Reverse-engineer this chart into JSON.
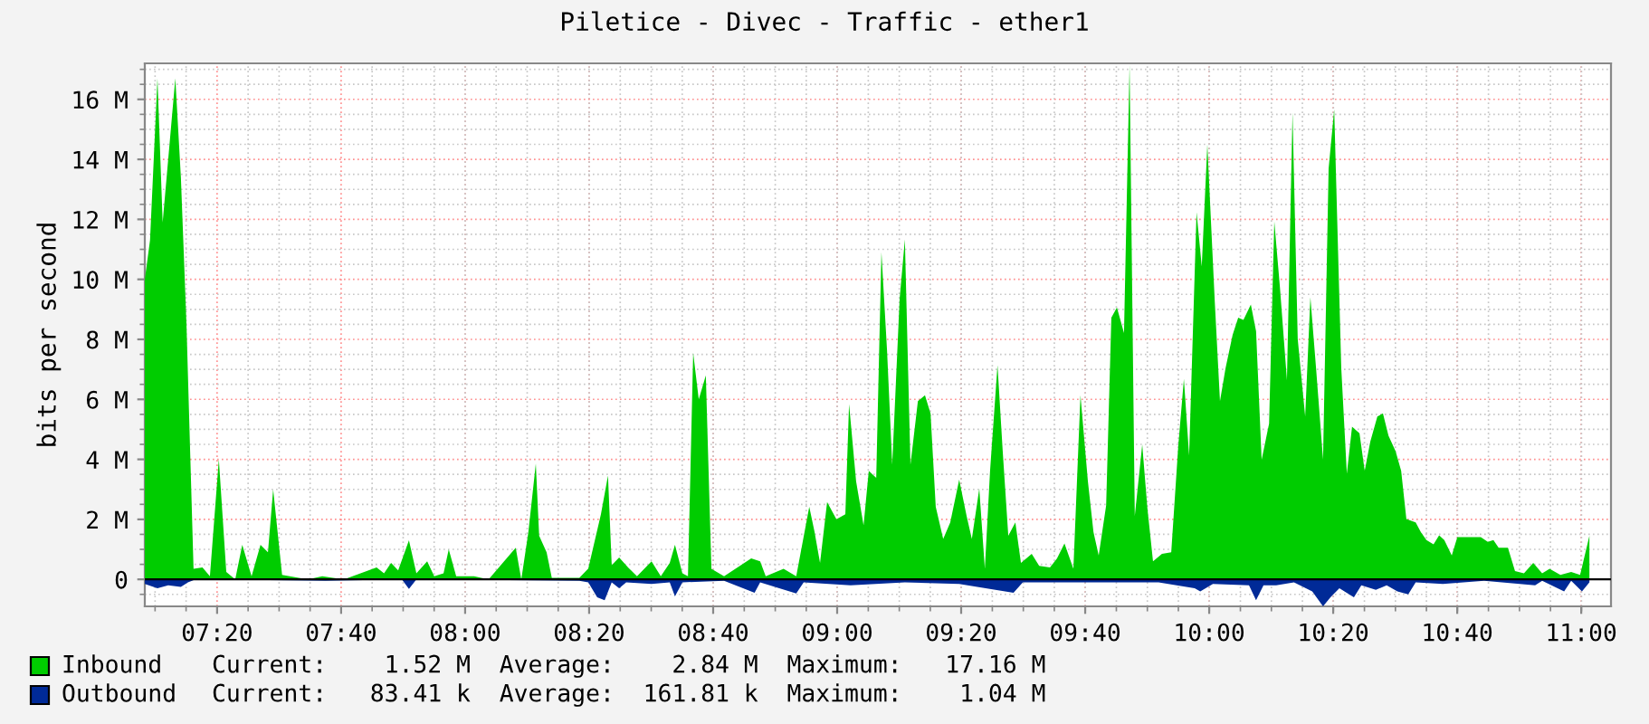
{
  "chart_data": {
    "type": "area",
    "title": "Piletice - Divec - Traffic - ether1",
    "ylabel": "bits per second",
    "xlim": [
      7.139,
      11.08
    ],
    "ylim": [
      -0.9,
      17.2
    ],
    "xticks": [
      {
        "value": 7.3333,
        "label": "07:20"
      },
      {
        "value": 7.6667,
        "label": "07:40"
      },
      {
        "value": 8,
        "label": "08:00"
      },
      {
        "value": 8.3333,
        "label": "08:20"
      },
      {
        "value": 8.6667,
        "label": "08:40"
      },
      {
        "value": 9,
        "label": "09:00"
      },
      {
        "value": 9.3333,
        "label": "09:20"
      },
      {
        "value": 9.6667,
        "label": "09:40"
      },
      {
        "value": 10,
        "label": "10:00"
      },
      {
        "value": 10.3333,
        "label": "10:20"
      },
      {
        "value": 10.6667,
        "label": "10:40"
      },
      {
        "value": 11,
        "label": "11:00"
      }
    ],
    "yticks": [
      0,
      {
        "value": 2,
        "label": "2 M"
      },
      {
        "value": 4,
        "label": "4 M"
      },
      {
        "value": 6,
        "label": "6 M"
      },
      {
        "value": 8,
        "label": "8 M"
      },
      {
        "value": 10,
        "label": "10 M"
      },
      {
        "value": 12,
        "label": "12 M"
      },
      {
        "value": 14,
        "label": "14 M"
      },
      {
        "value": 16,
        "label": "16 M"
      }
    ],
    "grid": true,
    "legend": "bottom",
    "annotations": [
      "Current:    1.52 M  Average:    2.84 M  Maximum:   17.16 M",
      "Current:   83.41 k  Average:  161.81 k  Maximum:    1.04 M"
    ],
    "series": [
      {
        "name": "Inbound",
        "color": "#00cc00",
        "x": [
          7.139,
          7.153,
          7.173,
          7.187,
          7.221,
          7.236,
          7.251,
          7.27,
          7.294,
          7.314,
          7.338,
          7.358,
          7.382,
          7.401,
          7.426,
          7.45,
          7.47,
          7.484,
          7.508,
          7.577,
          7.616,
          7.674,
          7.762,
          7.782,
          7.801,
          7.82,
          7.849,
          7.869,
          7.898,
          7.917,
          7.942,
          7.956,
          7.976,
          8.024,
          8.063,
          8.136,
          8.151,
          8.17,
          8.19,
          8.199,
          8.219,
          8.233,
          8.272,
          8.307,
          8.331,
          8.365,
          8.384,
          8.394,
          8.414,
          8.438,
          8.462,
          8.501,
          8.526,
          8.55,
          8.564,
          8.584,
          8.599,
          8.613,
          8.628,
          8.647,
          8.662,
          8.696,
          8.769,
          8.793,
          8.808,
          8.856,
          8.89,
          8.925,
          8.939,
          8.954,
          8.973,
          8.998,
          9.022,
          9.032,
          9.051,
          9.071,
          9.085,
          9.105,
          9.119,
          9.134,
          9.148,
          9.168,
          9.182,
          9.197,
          9.217,
          9.236,
          9.251,
          9.265,
          9.285,
          9.304,
          9.328,
          9.348,
          9.362,
          9.382,
          9.397,
          9.411,
          9.431,
          9.445,
          9.46,
          9.479,
          9.494,
          9.523,
          9.543,
          9.572,
          9.591,
          9.611,
          9.635,
          9.654,
          9.674,
          9.689,
          9.703,
          9.723,
          9.737,
          9.752,
          9.771,
          9.786,
          9.8,
          9.82,
          9.834,
          9.849,
          9.873,
          9.898,
          9.917,
          9.932,
          9.946,
          9.966,
          9.98,
          9.995,
          10.015,
          10.029,
          10.044,
          10.063,
          10.078,
          10.092,
          10.112,
          10.126,
          10.141,
          10.161,
          10.175,
          10.19,
          10.209,
          10.224,
          10.238,
          10.258,
          10.272,
          10.287,
          10.306,
          10.321,
          10.336,
          10.355,
          10.37,
          10.384,
          10.404,
          10.418,
          10.433,
          10.452,
          10.467,
          10.482,
          10.501,
          10.516,
          10.53,
          10.555,
          10.569,
          10.584,
          10.603,
          10.618,
          10.632,
          10.652,
          10.667,
          10.691,
          10.715,
          10.73,
          10.749,
          10.764,
          10.778,
          10.803,
          10.822,
          10.846,
          10.871,
          10.895,
          10.915,
          10.944,
          10.973,
          10.997,
          11.022
        ],
        "values": [
          10.0,
          11.3,
          16.7,
          11.9,
          16.7,
          13.4,
          8.5,
          0.35,
          0.4,
          0.1,
          4.0,
          0.25,
          0,
          1.15,
          0.1,
          1.15,
          0.9,
          3.0,
          0.15,
          0,
          0.1,
          0,
          0.4,
          0.2,
          0.55,
          0.3,
          1.3,
          0.2,
          0.6,
          0.1,
          0.2,
          1.0,
          0.1,
          0.1,
          0,
          1.05,
          0,
          1.57,
          3.86,
          1.45,
          0.9,
          0.05,
          0.05,
          0.05,
          0.36,
          2.17,
          3.46,
          0.47,
          0.73,
          0.4,
          0.1,
          0.6,
          0.1,
          0.55,
          1.15,
          0.2,
          0.1,
          7.55,
          6.0,
          6.8,
          0.35,
          0.1,
          0.7,
          0.6,
          0.1,
          0.35,
          0.1,
          2.42,
          1.6,
          0.55,
          2.58,
          2.0,
          2.17,
          5.84,
          3.26,
          1.8,
          3.62,
          3.38,
          10.9,
          7.65,
          3.82,
          9.36,
          11.33,
          3.82,
          5.94,
          6.14,
          5.53,
          2.42,
          1.35,
          1.9,
          3.32,
          2.11,
          1.35,
          3.02,
          0.35,
          3.62,
          7.14,
          4.27,
          1.45,
          1.9,
          0.55,
          0.85,
          0.45,
          0.4,
          0.7,
          1.2,
          0.35,
          6.14,
          3.26,
          1.57,
          0.8,
          2.46,
          8.72,
          9.06,
          8.21,
          17.15,
          2.11,
          4.49,
          2.36,
          0.6,
          0.85,
          0.9,
          4.47,
          6.68,
          4.13,
          12.24,
          10.43,
          14.49,
          9.26,
          5.94,
          7.04,
          8.15,
          8.72,
          8.65,
          9.16,
          8.27,
          3.99,
          5.19,
          11.93,
          9.76,
          6.64,
          15.56,
          8.01,
          5.43,
          9.4,
          7.08,
          3.99,
          13.69,
          15.66,
          7.04,
          3.52,
          5.09,
          4.87,
          3.62,
          4.59,
          5.43,
          5.53,
          4.79,
          4.27,
          3.62,
          2.01,
          1.9,
          1.57,
          1.31,
          1.17,
          1.47,
          1.31,
          0.8,
          1.41,
          1.41,
          1.41,
          1.41,
          1.25,
          1.31,
          1.05,
          1.05,
          0.28,
          0.2,
          0.55,
          0.2,
          0.35,
          0.15,
          0.25,
          0.15,
          1.45
        ]
      },
      {
        "name": "Outbound",
        "color": "#002a97",
        "x": [
          7.139,
          7.173,
          7.202,
          7.236,
          7.255,
          7.275,
          7.625,
          7.83,
          7.849,
          7.869,
          8.307,
          8.331,
          8.355,
          8.375,
          8.394,
          8.414,
          8.433,
          8.501,
          8.55,
          8.564,
          8.584,
          8.696,
          8.778,
          8.793,
          8.89,
          8.91,
          9.036,
          9.182,
          9.328,
          9.474,
          9.499,
          9.669,
          9.864,
          9.961,
          9.976,
          10.01,
          10.107,
          10.126,
          10.146,
          10.18,
          10.228,
          10.277,
          10.306,
          10.326,
          10.35,
          10.389,
          10.409,
          10.448,
          10.477,
          10.506,
          10.535,
          10.555,
          10.628,
          10.739,
          10.876,
          10.895,
          10.954,
          10.973,
          11.002,
          11.022
        ],
        "values": [
          -0.15,
          -0.3,
          -0.2,
          -0.25,
          -0.1,
          0,
          -0.05,
          0,
          -0.32,
          0,
          -0.05,
          -0.1,
          -0.6,
          -0.7,
          -0.1,
          -0.3,
          -0.1,
          -0.15,
          -0.1,
          -0.57,
          -0.1,
          -0.05,
          -0.45,
          -0.1,
          -0.47,
          -0.1,
          -0.2,
          -0.1,
          -0.15,
          -0.45,
          -0.1,
          -0.1,
          -0.1,
          -0.3,
          -0.4,
          -0.15,
          -0.2,
          -0.7,
          -0.2,
          -0.2,
          -0.1,
          -0.4,
          -0.9,
          -0.6,
          -0.3,
          -0.6,
          -0.2,
          -0.35,
          -0.2,
          -0.4,
          -0.5,
          -0.1,
          -0.15,
          -0.05,
          -0.2,
          -0.05,
          -0.4,
          -0.05,
          -0.4,
          -0.1
        ]
      }
    ]
  }
}
